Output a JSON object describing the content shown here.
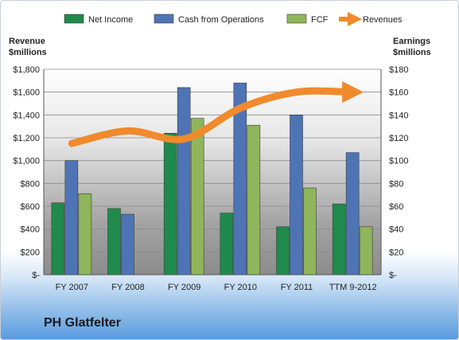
{
  "chart_data": {
    "type": "bar",
    "title": "PH Glatfelter",
    "y_left_label": [
      "Revenue",
      "$millions"
    ],
    "y_right_label": [
      "Earnings",
      "$millions"
    ],
    "categories": [
      "FY 2007",
      "FY 2008",
      "FY 2009",
      "FY 2010",
      "FY 2011",
      "TTM 9-2012"
    ],
    "y_left_ticks": [
      "$-",
      "$200",
      "$400",
      "$600",
      "$800",
      "$1,000",
      "$1,200",
      "$1,400",
      "$1,600",
      "$1,800"
    ],
    "y_right_ticks": [
      "$-",
      "$20",
      "$40",
      "$60",
      "$80",
      "$100",
      "$120",
      "$140",
      "$160",
      "$180"
    ],
    "y_left_lim": [
      0,
      1800
    ],
    "y_right_lim": [
      0,
      180
    ],
    "grid": true,
    "legend_position": "top",
    "series": [
      {
        "name": "Net Income",
        "axis": "right",
        "color": "#1f8a4c",
        "values": [
          63,
          58,
          124,
          54,
          42,
          62
        ]
      },
      {
        "name": "Cash from Operations",
        "axis": "right",
        "color": "#4f74b5",
        "values": [
          100,
          53,
          164,
          168,
          140,
          107
        ]
      },
      {
        "name": "FCF",
        "axis": "right",
        "color": "#8fb65a",
        "values": [
          71,
          null,
          137,
          131,
          76,
          42
        ]
      },
      {
        "name": "Revenues",
        "axis": "left",
        "type": "line",
        "color": "#f08a2c",
        "values": [
          1150,
          1260,
          1190,
          1460,
          1600,
          1600
        ]
      }
    ]
  }
}
